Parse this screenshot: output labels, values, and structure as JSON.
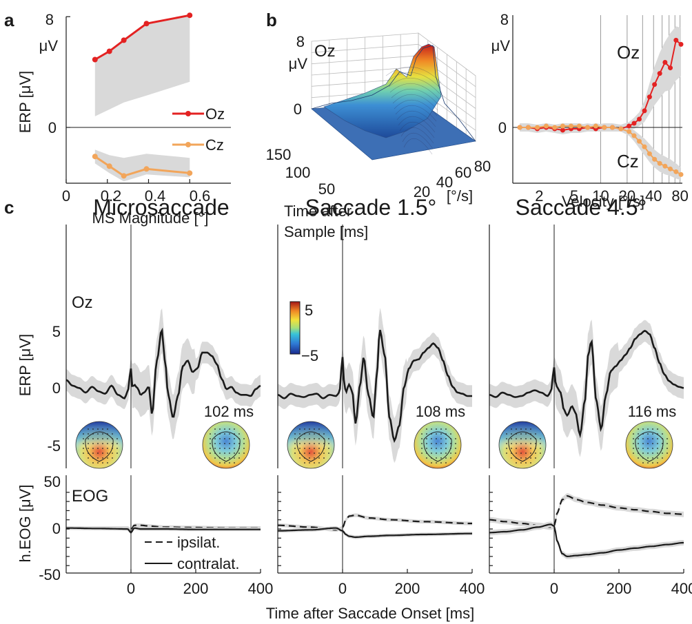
{
  "panel_labels": {
    "a": "a",
    "b": "b",
    "c": "c"
  },
  "colors": {
    "oz": "#e32222",
    "cz": "#f2a55a",
    "band": "#d9d9d9",
    "trace": "#1a1a1a"
  },
  "panel_a": {
    "y_unit": "μV",
    "y_title": "ERP [μV]",
    "x_title": "MS Magnitude [°]",
    "y_ticks": [
      "8",
      "0"
    ],
    "x_ticks": [
      "0",
      "0.2",
      "0.4",
      "0.6"
    ],
    "legend": [
      "Oz",
      "Cz"
    ]
  },
  "panel_b3d": {
    "channel": "Oz",
    "z_ticks": [
      "8",
      "0"
    ],
    "z_unit": "μV",
    "time_ticks": [
      "150",
      "100",
      "50"
    ],
    "time_title_1": "Time after",
    "time_title_2": "Sample [ms]",
    "vel_ticks": [
      "20",
      "40",
      "60",
      "80"
    ],
    "vel_unit": "[°/s]"
  },
  "panel_bv": {
    "y_ticks": [
      "8",
      "0"
    ],
    "y_unit": "μV",
    "x_ticks": [
      "2",
      "5",
      "10",
      "20",
      "40",
      "80"
    ],
    "x_title": "Velocity [°/s]",
    "label_oz": "Oz",
    "label_cz": "Cz"
  },
  "panel_c": {
    "titles": [
      "Microsaccade",
      "Saccade 1.5°",
      "Saccade 4.5°"
    ],
    "channel_erp": "Oz",
    "channel_eog": "EOG",
    "erp_y_title": "ERP [μV]",
    "eog_y_title": "h.EOG [μV]",
    "erp_y_ticks": [
      "5",
      "0",
      "-5"
    ],
    "eog_y_ticks": [
      "50",
      "0",
      "-50"
    ],
    "x_ticks": [
      "0",
      "200",
      "400"
    ],
    "x_title": "Time after Saccade Onset [ms]",
    "topo_times": [
      "102 ms",
      "108 ms",
      "116 ms"
    ],
    "colorbar_ticks": [
      "5",
      "−5"
    ],
    "legend": [
      "ipsilat.",
      "contralat."
    ]
  },
  "chart_data": [
    {
      "type": "line",
      "panel": "a",
      "xlabel": "MS Magnitude [°]",
      "ylabel": "ERP [μV]",
      "xlim": [
        0,
        0.8
      ],
      "ylim": [
        -5,
        8
      ],
      "series": [
        {
          "name": "Oz",
          "x": [
            0.14,
            0.21,
            0.28,
            0.39,
            0.6
          ],
          "y": [
            4.9,
            5.5,
            6.3,
            7.5,
            8.1
          ],
          "band_low": [
            0.8,
            1.3,
            1.8,
            2.3,
            3.3
          ],
          "band_high": [
            4.9,
            5.5,
            6.3,
            7.5,
            8.1
          ]
        },
        {
          "name": "Cz",
          "x": [
            0.14,
            0.21,
            0.28,
            0.39,
            0.6
          ],
          "y": [
            -2.1,
            -2.8,
            -3.5,
            -3.0,
            -3.3
          ],
          "band_low": [
            -2.6,
            -3.3,
            -3.9,
            -3.4,
            -3.6
          ],
          "band_high": [
            -1.6,
            -2.0,
            -2.2,
            -1.9,
            -2.2
          ]
        }
      ]
    },
    {
      "type": "line",
      "panel": "b-velocity",
      "xlabel": "Velocity [°/s]",
      "x_scale": "log",
      "xlim": [
        1,
        85
      ],
      "ylim": [
        -3.5,
        8
      ],
      "series": [
        {
          "name": "Oz",
          "x": [
            1.2,
            1.5,
            1.9,
            2.4,
            3,
            3.7,
            4.6,
            5.7,
            7.1,
            8.8,
            11,
            13.6,
            17,
            21,
            24,
            27.5,
            31.5,
            36,
            41,
            47,
            54,
            62,
            72,
            82
          ],
          "y": [
            0,
            0,
            -0.1,
            0,
            -0.1,
            -0.2,
            -0.1,
            -0.1,
            0,
            -0.1,
            0,
            0,
            -0.1,
            0.1,
            0.3,
            0.6,
            1.2,
            2.2,
            3.1,
            3.9,
            4.7,
            4.3,
            6.3,
            6.0
          ],
          "band_low": [
            -0.3,
            -0.3,
            -0.4,
            -0.3,
            -0.4,
            -0.5,
            -0.4,
            -0.4,
            -0.3,
            -0.3,
            -0.3,
            -0.3,
            -0.3,
            -0.2,
            -0.1,
            0.1,
            0.4,
            1.0,
            1.6,
            2.1,
            2.6,
            2.7,
            3.4,
            3.7
          ],
          "band_high": [
            0.3,
            0.3,
            0.2,
            0.3,
            0.2,
            0.1,
            0.2,
            0.2,
            0.3,
            0.2,
            0.3,
            0.3,
            0.2,
            0.4,
            0.7,
            1.1,
            1.9,
            3.2,
            4.4,
            5.4,
            6.2,
            6.8,
            7.3,
            7.2
          ]
        },
        {
          "name": "Cz",
          "x": [
            1.2,
            1.5,
            1.9,
            2.4,
            3,
            3.7,
            4.6,
            5.7,
            7.1,
            8.8,
            11,
            13.6,
            17,
            21,
            24,
            27.5,
            31.5,
            36,
            41,
            47,
            54,
            62,
            72,
            82
          ],
          "y": [
            0,
            0,
            0,
            0.1,
            0,
            0.1,
            0.1,
            0.1,
            0,
            0.1,
            0,
            0,
            -0.1,
            -0.3,
            -0.6,
            -1.0,
            -1.4,
            -1.9,
            -2.3,
            -2.6,
            -2.8,
            -3.0,
            -3.2,
            -3.4
          ],
          "band_low": [
            -0.2,
            -0.2,
            -0.2,
            -0.1,
            -0.2,
            -0.1,
            -0.1,
            -0.1,
            -0.2,
            -0.1,
            -0.2,
            -0.2,
            -0.3,
            -0.6,
            -1.0,
            -1.5,
            -2.0,
            -2.5,
            -2.9,
            -3.2,
            -3.4,
            -3.5,
            -3.7,
            -3.8
          ],
          "band_high": [
            0.2,
            0.2,
            0.2,
            0.3,
            0.2,
            0.3,
            0.3,
            0.3,
            0.2,
            0.3,
            0.2,
            0.2,
            0.1,
            0.0,
            -0.2,
            -0.5,
            -0.8,
            -1.2,
            -1.6,
            -1.9,
            -2.1,
            -2.3,
            -2.6,
            -2.9
          ]
        }
      ]
    },
    {
      "type": "line",
      "panel": "c-erp",
      "ylabel": "ERP [μV]",
      "xlim": [
        -200,
        400
      ],
      "ylim": [
        -7,
        9
      ],
      "series": [
        {
          "name": "Microsaccade",
          "x": [
            -200,
            -180,
            -160,
            -140,
            -120,
            -100,
            -80,
            -60,
            -40,
            -20,
            -10,
            0,
            5,
            10,
            20,
            30,
            40,
            55,
            65,
            80,
            95,
            105,
            115,
            130,
            145,
            160,
            175,
            190,
            205,
            220,
            235,
            250,
            265,
            280,
            295,
            310,
            325,
            340,
            355,
            370,
            385,
            400
          ],
          "y": [
            0.8,
            0.3,
            0.1,
            -0.3,
            0.2,
            -0.2,
            -0.4,
            0.3,
            -0.5,
            -0.8,
            -0.2,
            1.8,
            0.1,
            0.4,
            0.1,
            -0.5,
            -0.3,
            0.2,
            -2.2,
            2.5,
            5.2,
            2.5,
            -0.5,
            -2.5,
            -0.6,
            2.0,
            2.5,
            1.5,
            1.8,
            3.2,
            3.2,
            2.9,
            2.2,
            0.9,
            0.0,
            0.2,
            -0.3,
            -0.5,
            -0.5,
            -0.6,
            0.0,
            0.3
          ]
        },
        {
          "name": "Saccade 1.5°",
          "x": [
            -200,
            -180,
            -160,
            -140,
            -120,
            -100,
            -80,
            -60,
            -40,
            -20,
            -10,
            0,
            5,
            10,
            20,
            30,
            40,
            55,
            65,
            80,
            95,
            105,
            115,
            130,
            145,
            160,
            175,
            190,
            205,
            220,
            235,
            250,
            265,
            280,
            295,
            310,
            325,
            340,
            355,
            370,
            385,
            400
          ],
          "y": [
            -0.5,
            -0.8,
            -0.4,
            -0.6,
            -0.7,
            -0.5,
            -0.4,
            -0.8,
            -0.5,
            -0.6,
            -0.3,
            2.8,
            0.6,
            -0.3,
            0.4,
            -0.2,
            -3.0,
            0.5,
            2.8,
            -0.5,
            -2.5,
            1.0,
            5.2,
            3.0,
            -2.5,
            -4.5,
            -3.2,
            0.2,
            1.8,
            2.5,
            2.6,
            3.2,
            3.6,
            4.0,
            3.6,
            2.5,
            1.2,
            0.2,
            -0.3,
            -0.4,
            -0.6,
            -0.6
          ]
        },
        {
          "name": "Saccade 4.5°",
          "x": [
            -200,
            -180,
            -160,
            -140,
            -120,
            -100,
            -80,
            -60,
            -40,
            -20,
            -10,
            0,
            5,
            10,
            20,
            30,
            40,
            55,
            65,
            80,
            95,
            105,
            115,
            130,
            145,
            160,
            175,
            190,
            205,
            220,
            235,
            250,
            265,
            280,
            295,
            310,
            325,
            340,
            355,
            370,
            385,
            400
          ],
          "y": [
            -0.5,
            -0.7,
            -0.3,
            -0.5,
            -0.7,
            -0.6,
            -0.3,
            -0.1,
            -0.3,
            -0.6,
            -0.2,
            1.9,
            0.5,
            0.1,
            -0.3,
            -1.8,
            -2.3,
            -1.5,
            -2.0,
            -4.0,
            -1.0,
            3.0,
            4.2,
            -1.0,
            -3.5,
            -0.5,
            1.6,
            2.0,
            2.5,
            3.0,
            3.6,
            4.4,
            4.8,
            5.1,
            4.8,
            3.6,
            2.3,
            1.3,
            0.7,
            0.4,
            0.2,
            0.1
          ]
        }
      ]
    },
    {
      "type": "line",
      "panel": "c-eog",
      "ylabel": "h.EOG [μV]",
      "xlabel": "Time after Saccade Onset [ms]",
      "xlim": [
        -200,
        400
      ],
      "ylim": [
        -50,
        50
      ],
      "series": [
        {
          "name": "Microsaccade ipsilat.",
          "x": [
            -200,
            -100,
            -10,
            0,
            10,
            30,
            60,
            100,
            200,
            300,
            400
          ],
          "y": [
            1,
            1,
            1,
            -1,
            4,
            4,
            3,
            2,
            1.5,
            1,
            1
          ]
        },
        {
          "name": "Microsaccade contralat.",
          "x": [
            -200,
            -100,
            -10,
            0,
            10,
            30,
            60,
            100,
            200,
            300,
            400
          ],
          "y": [
            1,
            0.5,
            0,
            -4,
            1,
            0,
            0,
            0,
            -0.5,
            -0.5,
            -0.5
          ]
        },
        {
          "name": "Saccade 1.5° ipsilat.",
          "x": [
            -200,
            -100,
            -20,
            0,
            10,
            20,
            40,
            80,
            150,
            250,
            400
          ],
          "y": [
            4,
            2,
            -1,
            1,
            10,
            14,
            15,
            12,
            10,
            8,
            6
          ]
        },
        {
          "name": "Saccade 1.5° contralat.",
          "x": [
            -200,
            -100,
            -20,
            0,
            10,
            20,
            40,
            80,
            150,
            250,
            400
          ],
          "y": [
            -2,
            -1,
            1,
            -2,
            -6,
            -8,
            -9,
            -8,
            -7,
            -6,
            -5
          ]
        },
        {
          "name": "Saccade 4.5° ipsilat.",
          "x": [
            -200,
            -150,
            -100,
            -50,
            -10,
            0,
            10,
            25,
            40,
            70,
            100,
            150,
            200,
            250,
            300,
            350,
            400
          ],
          "y": [
            10,
            8,
            6,
            4,
            2,
            3,
            18,
            32,
            36,
            32,
            29,
            26,
            23,
            21,
            19,
            17,
            16
          ]
        },
        {
          "name": "Saccade 4.5° contralat.",
          "x": [
            -200,
            -150,
            -100,
            -50,
            -10,
            0,
            10,
            25,
            40,
            70,
            100,
            150,
            200,
            250,
            300,
            350,
            400
          ],
          "y": [
            -4,
            -3,
            -1,
            2,
            5,
            3,
            -14,
            -27,
            -30,
            -29,
            -28,
            -26,
            -23,
            -21,
            -19,
            -17,
            -15
          ]
        }
      ]
    }
  ]
}
